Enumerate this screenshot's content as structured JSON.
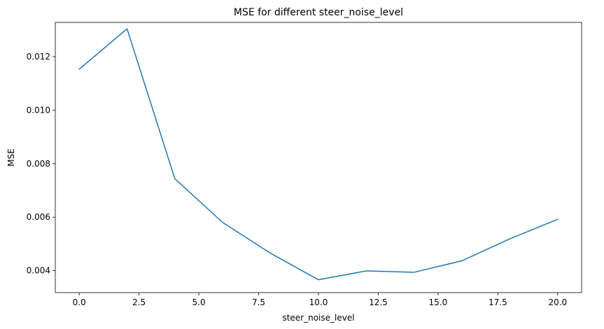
{
  "chart_data": {
    "type": "line",
    "title": "MSE for different steer_noise_level",
    "xlabel": "steer_noise_level",
    "ylabel": "MSE",
    "xlim": [
      -1.0,
      21.0
    ],
    "ylim": [
      0.00318,
      0.01328
    ],
    "xticks": [
      0.0,
      2.5,
      5.0,
      7.5,
      10.0,
      12.5,
      15.0,
      17.5,
      20.0
    ],
    "xtick_labels": [
      "0.0",
      "2.5",
      "5.0",
      "7.5",
      "10.0",
      "12.5",
      "15.0",
      "17.5",
      "20.0"
    ],
    "yticks": [
      0.004,
      0.006,
      0.008,
      0.01,
      0.012
    ],
    "ytick_labels": [
      "0.004",
      "0.006",
      "0.008",
      "0.010",
      "0.012"
    ],
    "grid": false,
    "series": [
      {
        "color": "#1f77b4",
        "x": [
          0,
          2,
          4,
          6,
          8,
          10,
          12,
          14,
          16,
          18,
          20
        ],
        "y": [
          0.01153,
          0.01304,
          0.00743,
          0.0058,
          0.00465,
          0.00366,
          0.00399,
          0.00394,
          0.00437,
          0.00519,
          0.00592
        ]
      }
    ]
  }
}
